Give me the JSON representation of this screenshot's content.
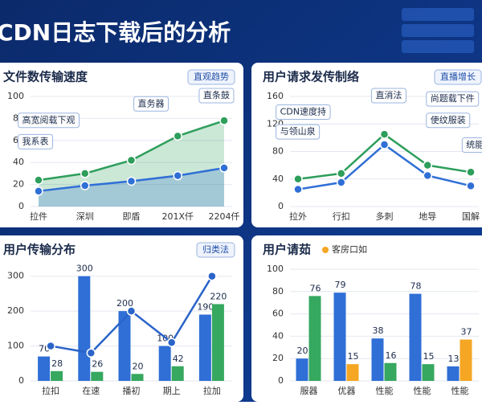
{
  "header": {
    "title": "CDN日志下载后的分析"
  },
  "chart_data": [
    {
      "type": "area",
      "title": "文件数传输速度",
      "badge": "直观趋势",
      "categories": [
        "拉件",
        "深圳",
        "即盾",
        "201X仟",
        "2204仟"
      ],
      "ylim": [
        0,
        100
      ],
      "yticks": [
        0,
        20,
        40,
        60,
        80,
        100
      ],
      "grid": true,
      "series": [
        {
          "color": "#2e9e5b",
          "values": [
            24,
            30,
            42,
            64,
            78
          ]
        },
        {
          "color": "#2f6fd6",
          "values": [
            14,
            19,
            23,
            28,
            35
          ]
        }
      ],
      "annotations": [
        "高宽阅载下观",
        "我系表",
        "直务器",
        "直条鼓"
      ]
    },
    {
      "type": "line",
      "title": "用户请求发传制络",
      "badge": "直播增长",
      "categories": [
        "拉外",
        "行扣",
        "多刺",
        "地导",
        "国解"
      ],
      "ylim": [
        0,
        160
      ],
      "yticks": [
        0,
        40,
        80,
        120,
        160
      ],
      "grid": true,
      "series": [
        {
          "color": "#2e9e5b",
          "values": [
            40,
            48,
            105,
            60,
            50
          ]
        },
        {
          "color": "#2f6fd6",
          "values": [
            25,
            35,
            90,
            45,
            30
          ]
        }
      ],
      "annotations": [
        "CDN速度持",
        "与领山泉",
        "直消法",
        "尚题载下件",
        "使纹服装",
        "统能"
      ]
    },
    {
      "type": "bar",
      "title": "用户传输分布",
      "badge": "归类法",
      "categories": [
        "拉扣",
        "在速",
        "播初",
        "期上",
        "拉加"
      ],
      "ylim": [
        0,
        320
      ],
      "yticks": [
        0,
        100,
        200,
        300
      ],
      "grid": true,
      "series": [
        {
          "color": "#2f6fd6",
          "values": [
            70,
            300,
            200,
            100,
            190
          ]
        },
        {
          "color": "#36a85f",
          "values": [
            28,
            26,
            20,
            42,
            220
          ]
        },
        {
          "color": "#2a64c9",
          "kind": "line",
          "values": [
            100,
            80,
            200,
            110,
            300
          ]
        }
      ]
    },
    {
      "type": "bar",
      "title": "用户请茹",
      "categories": [
        "服器",
        "优器",
        "性能",
        "性能",
        "性能"
      ],
      "ylim": [
        0,
        100
      ],
      "yticks": [
        0,
        20,
        40,
        60,
        80,
        100
      ],
      "grid": true,
      "series": [
        {
          "color": "#2f6fd6",
          "values": [
            20,
            79,
            38,
            78,
            13
          ]
        },
        {
          "color": "#36a85f",
          "values": [
            76,
            null,
            16,
            15,
            null
          ]
        },
        {
          "name": "客房口如",
          "color": "#f5a623",
          "values": [
            null,
            15,
            null,
            null,
            37
          ]
        }
      ]
    }
  ]
}
